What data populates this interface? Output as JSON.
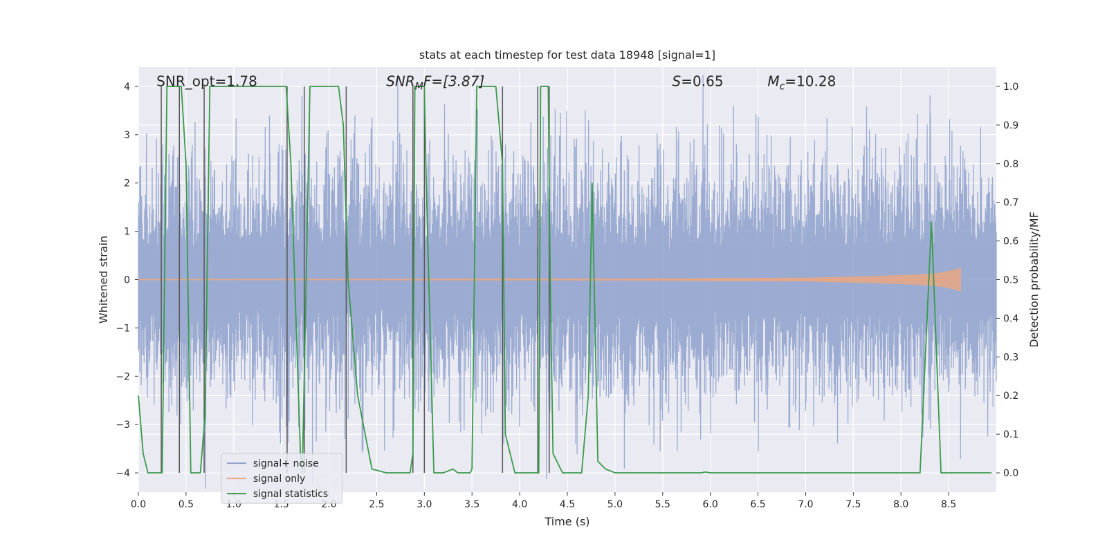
{
  "chart_data": {
    "type": "line",
    "title": "stats at each timestep for test data 18948 [signal=1]",
    "xlabel": "Time (s)",
    "ylabel": "Whitened strain",
    "y2label": "Detection probability/MF",
    "xlim": [
      0.0,
      9.0
    ],
    "ylim": [
      -4.4,
      4.4
    ],
    "y2lim": [
      -0.05,
      1.05
    ],
    "xticks": [
      "0.0",
      "0.5",
      "1.0",
      "1.5",
      "2.0",
      "2.5",
      "3.0",
      "3.5",
      "4.0",
      "4.5",
      "5.0",
      "5.5",
      "6.0",
      "6.5",
      "7.0",
      "7.5",
      "8.0",
      "8.5"
    ],
    "xtick_values": [
      0.0,
      0.5,
      1.0,
      1.5,
      2.0,
      2.5,
      3.0,
      3.5,
      4.0,
      4.5,
      5.0,
      5.5,
      6.0,
      6.5,
      7.0,
      7.5,
      8.0,
      8.5
    ],
    "yticks": [
      "−4",
      "−3",
      "−2",
      "−1",
      "0",
      "1",
      "2",
      "3",
      "4"
    ],
    "ytick_values": [
      -4,
      -3,
      -2,
      -1,
      0,
      1,
      2,
      3,
      4
    ],
    "y2ticks": [
      "0.0",
      "0.1",
      "0.2",
      "0.3",
      "0.4",
      "0.5",
      "0.6",
      "0.7",
      "0.8",
      "0.9",
      "1.0"
    ],
    "y2tick_values": [
      0.0,
      0.1,
      0.2,
      0.3,
      0.4,
      0.5,
      0.6,
      0.7,
      0.8,
      0.9,
      1.0
    ],
    "annotations": {
      "snr_opt": "SNR_opt=1.78",
      "snr_mf_base": "SNR",
      "snr_mf_sub": "M",
      "snr_mf_rest": "F=[3.87]",
      "s_italic": "S",
      "s_rest": "=0.65",
      "mc_base": "M",
      "mc_sub": "c",
      "mc_rest": "=10.28"
    },
    "legend": {
      "position": "lower-left",
      "entries": [
        {
          "label": "signal+ noise",
          "color": "#8da0cb"
        },
        {
          "label": "signal only",
          "color": "#e8a785"
        },
        {
          "label": "signal statistics",
          "color": "#3a9a4a"
        }
      ]
    },
    "series": [
      {
        "name": "signal+ noise",
        "color": "#8da0cb",
        "noise_std": 1.05,
        "noise_seed": 18948,
        "x_range": [
          0.0,
          9.0
        ],
        "n_samples": 1800
      },
      {
        "name": "signal only",
        "color": "#e8a785",
        "chirp_end": 8.63,
        "max_amplitude": 0.25,
        "envelope": [
          [
            0.0,
            0.01
          ],
          [
            5.0,
            0.02
          ],
          [
            7.0,
            0.04
          ],
          [
            7.8,
            0.08
          ],
          [
            8.2,
            0.11
          ],
          [
            8.4,
            0.14
          ],
          [
            8.55,
            0.2
          ],
          [
            8.63,
            0.25
          ]
        ]
      },
      {
        "name": "signal statistics",
        "color": "#3a9a4a",
        "axis": "right",
        "x": [
          0.0,
          0.05,
          0.1,
          0.2,
          0.25,
          0.3,
          0.45,
          0.5,
          0.55,
          0.6,
          0.65,
          0.7,
          0.75,
          1.55,
          1.6,
          1.7,
          1.72,
          1.8,
          2.1,
          2.15,
          2.2,
          2.3,
          2.45,
          2.6,
          2.85,
          2.88,
          2.9,
          3.0,
          3.02,
          3.1,
          3.2,
          3.3,
          3.35,
          3.4,
          3.48,
          3.5,
          3.55,
          3.75,
          3.82,
          3.85,
          3.95,
          4.0,
          4.2,
          4.22,
          4.3,
          4.32,
          4.35,
          4.45,
          4.65,
          4.72,
          4.76,
          4.82,
          4.9,
          5.0,
          5.5,
          5.9,
          5.95,
          6.0,
          7.5,
          8.2,
          8.32,
          8.42,
          8.5,
          8.95
        ],
        "y": [
          0.2,
          0.05,
          0.0,
          0.0,
          0.0,
          1.0,
          1.0,
          0.8,
          0.0,
          0.0,
          0.0,
          0.15,
          1.0,
          1.0,
          0.8,
          0.05,
          0.0,
          1.0,
          1.0,
          0.9,
          0.5,
          0.2,
          0.01,
          0.0,
          0.0,
          0.05,
          1.0,
          1.0,
          0.75,
          0.0,
          0.0,
          0.01,
          0.0,
          0.0,
          0.0,
          0.01,
          1.0,
          1.0,
          0.8,
          0.1,
          0.0,
          0.0,
          0.0,
          1.0,
          1.0,
          0.5,
          0.05,
          0.0,
          0.0,
          0.2,
          0.75,
          0.03,
          0.01,
          0.0,
          0.0,
          0.0,
          0.002,
          0.0,
          0.0,
          0.0,
          0.65,
          0.0,
          0.0,
          0.0
        ]
      }
    ],
    "vertical_lines": [
      {
        "x": 0.24,
        "y_bottom": -4.0,
        "y_top": 4.0
      },
      {
        "x": 0.43,
        "y_bottom": -4.0,
        "y_top": 4.0
      },
      {
        "x": 0.69,
        "y_bottom": -4.0,
        "y_top": 4.0
      },
      {
        "x": 1.56,
        "y_bottom": -4.0,
        "y_top": 4.0
      },
      {
        "x": 1.74,
        "y_bottom": -4.0,
        "y_top": 4.0
      },
      {
        "x": 2.18,
        "y_bottom": -4.0,
        "y_top": 4.0
      },
      {
        "x": 2.88,
        "y_bottom": -4.0,
        "y_top": 4.0
      },
      {
        "x": 3.0,
        "y_bottom": -4.0,
        "y_top": 4.0
      },
      {
        "x": 3.82,
        "y_bottom": -4.0,
        "y_top": 4.0
      },
      {
        "x": 4.19,
        "y_bottom": -4.0,
        "y_top": 4.0
      },
      {
        "x": 4.31,
        "y_bottom": -4.0,
        "y_top": 4.0
      }
    ],
    "grid": true,
    "background": "#eaeaf2"
  }
}
